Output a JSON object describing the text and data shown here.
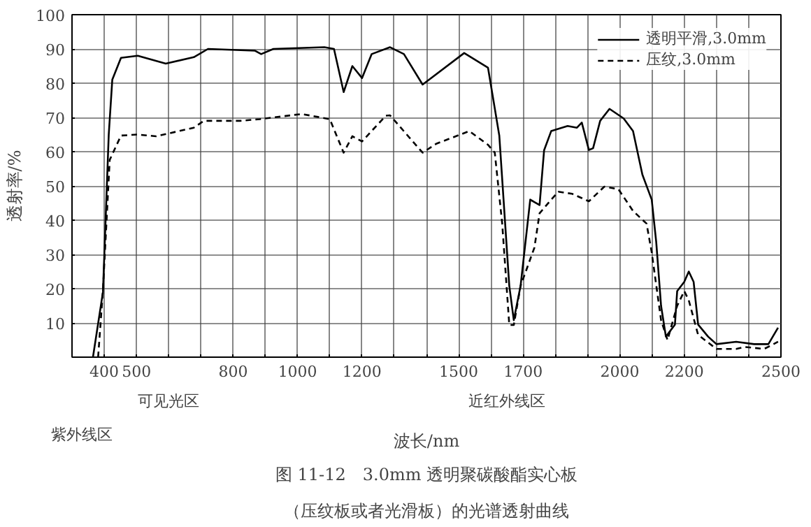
{
  "chart_data": {
    "type": "line",
    "title": "图 11-12　3.0mm 透明聚碳酸酯实心板",
    "subtitle": "（压纹板或者光滑板）的光谱透射曲线",
    "xlabel": "波长/nm",
    "ylabel": "透射率/%",
    "xlim": [
      300,
      2500
    ],
    "ylim": [
      0,
      100
    ],
    "xticks": [
      {
        "value": 300,
        "label": null
      },
      400,
      500,
      {
        "value": 600,
        "label": null
      },
      {
        "value": 700,
        "label": null
      },
      800,
      {
        "value": 900,
        "label": null
      },
      1000,
      {
        "value": 1100,
        "label": null
      },
      1200,
      {
        "value": 1300,
        "label": null
      },
      {
        "value": 1400,
        "label": null
      },
      1500,
      {
        "value": 1600,
        "label": null
      },
      1700,
      {
        "value": 1800,
        "label": null
      },
      {
        "value": 1900,
        "label": null
      },
      2000,
      {
        "value": 2100,
        "label": null
      },
      2200,
      {
        "value": 2300,
        "label": null
      },
      {
        "value": 2400,
        "label": null
      },
      2500
    ],
    "yticks": [
      10,
      20,
      30,
      40,
      50,
      60,
      70,
      80,
      90,
      100
    ],
    "grid": true,
    "legend": "top right",
    "marker": "none",
    "annotations": [
      "紫外线区",
      "可见光区",
      "近红外线区"
    ],
    "series": [
      {
        "name": "透明平滑,3.0mm",
        "color": "#000000",
        "line_style": "solid",
        "x": [
          365,
          396,
          414,
          425,
          452,
          504,
          591,
          678,
          722,
          867,
          887,
          925,
          1083,
          1113,
          1143,
          1170,
          1200,
          1230,
          1287,
          1330,
          1388,
          1517,
          1591,
          1626,
          1657,
          1671,
          1692,
          1722,
          1751,
          1765,
          1787,
          1838,
          1867,
          1882,
          1904,
          1917,
          1939,
          1968,
          2012,
          2041,
          2070,
          2099,
          2113,
          2128,
          2143,
          2171,
          2178,
          2200,
          2214,
          2229,
          2243,
          2274,
          2300,
          2361,
          2417,
          2461,
          2491
        ],
        "values": [
          0,
          19,
          65,
          81,
          87.4,
          88,
          85.7,
          87.6,
          90,
          89.5,
          88.5,
          90,
          90.5,
          90,
          77.4,
          85,
          81.5,
          88.5,
          90.5,
          88.5,
          79.6,
          88.8,
          84.5,
          64.7,
          20.8,
          10.8,
          20.8,
          46,
          44.4,
          60.4,
          66,
          67.5,
          67,
          68.5,
          60.5,
          61,
          69,
          72.5,
          69.7,
          66,
          53.3,
          46,
          33.6,
          15,
          6,
          9.5,
          19.3,
          22,
          25,
          22,
          9.5,
          6,
          3.8,
          4.5,
          3.8,
          3.8,
          8.6
        ]
      },
      {
        "name": "压纹,3.0mm",
        "color": "#000000",
        "line_style": "dashed",
        "x": [
          381,
          396,
          417,
          452,
          504,
          561,
          678,
          709,
          822,
          883,
          1013,
          1100,
          1143,
          1170,
          1200,
          1274,
          1287,
          1388,
          1430,
          1533,
          1591,
          1612,
          1635,
          1657,
          1671,
          1692,
          1735,
          1751,
          1787,
          1809,
          1852,
          1904,
          1952,
          1996,
          2041,
          2083,
          2099,
          2128,
          2148,
          2178,
          2200,
          2214,
          2243,
          2300,
          2361,
          2387,
          2448,
          2491
        ],
        "values": [
          0,
          19.5,
          57.6,
          64.7,
          65,
          64.5,
          67,
          69,
          69,
          69.5,
          71,
          69.5,
          59.7,
          64.5,
          63,
          70.5,
          70.6,
          59.7,
          62.3,
          66,
          62,
          59.7,
          39,
          9.4,
          9.4,
          20.8,
          32,
          42,
          46,
          48.3,
          47.7,
          45.5,
          49.8,
          49,
          42.7,
          39,
          30.6,
          10.8,
          5,
          15,
          19.3,
          16.6,
          6.5,
          2.4,
          2.4,
          3,
          2.4,
          4.5
        ]
      }
    ]
  }
}
